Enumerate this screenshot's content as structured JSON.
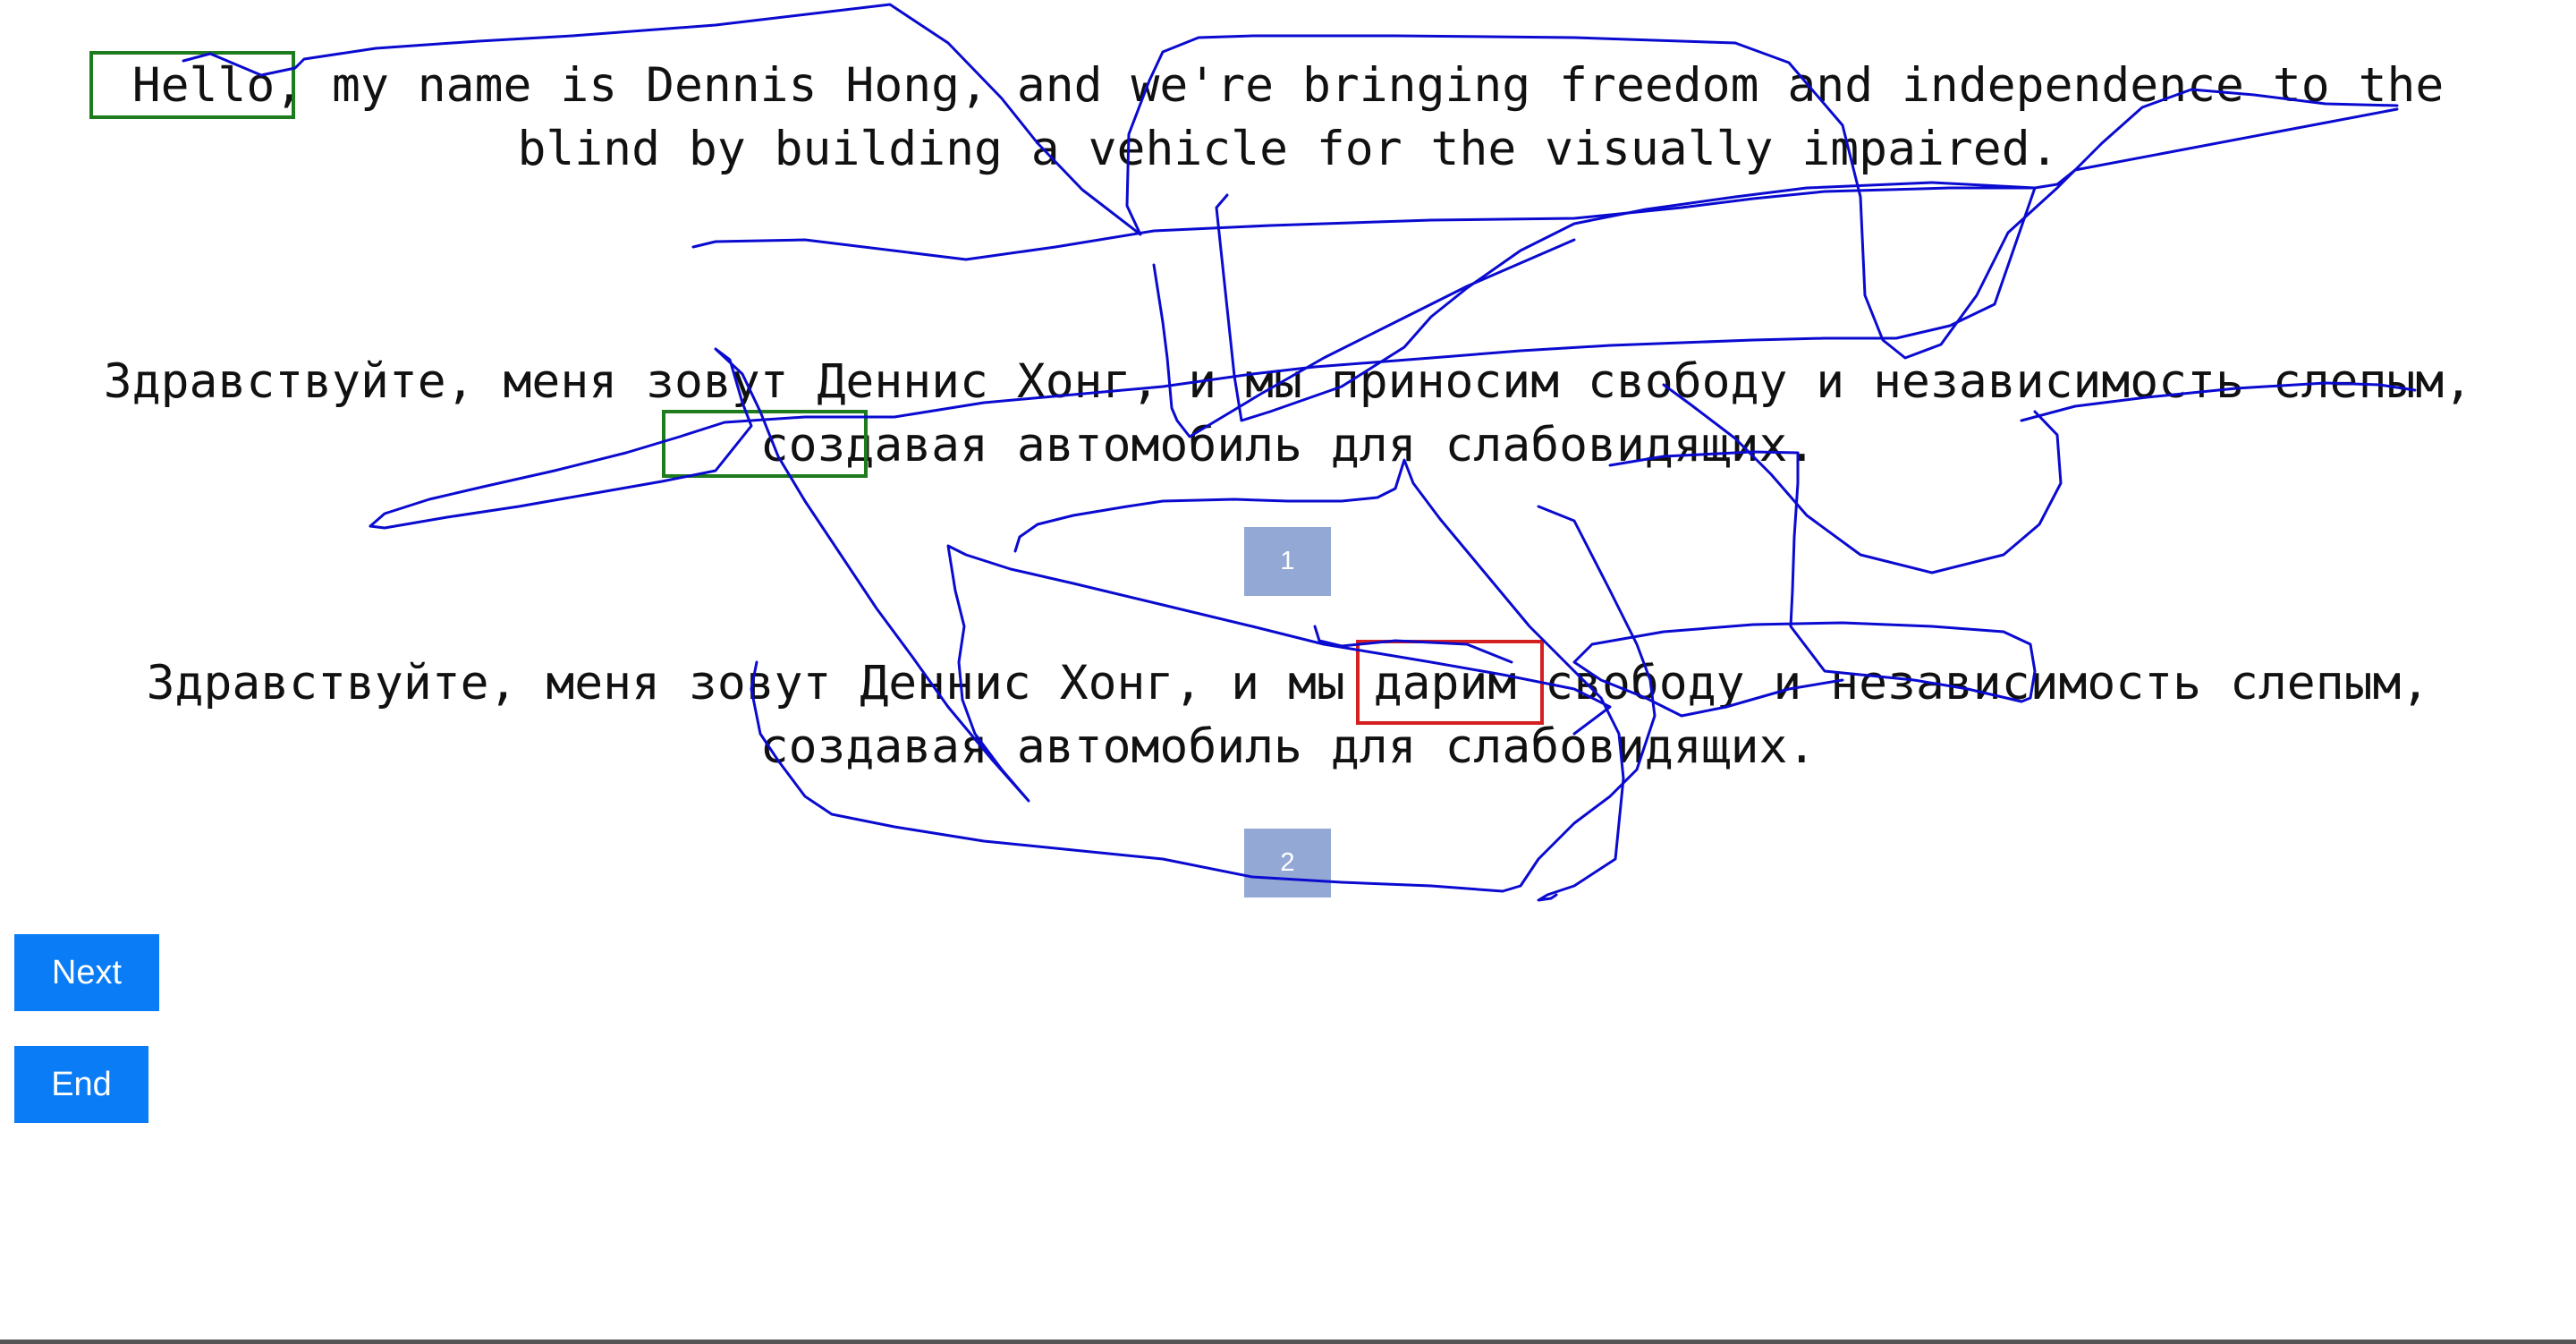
{
  "source": {
    "lines": [
      "Hello, my name is Dennis Hong, and we're bringing freedom and independence to the",
      "blind by building a vehicle for the visually impaired."
    ]
  },
  "reference": {
    "lines": [
      "Здравствуйте, меня зовут Деннис Хонг, и мы приносим свободу и независимость слепым,",
      "создавая автомобиль для слабовидящих."
    ],
    "badge": "1"
  },
  "hypothesis": {
    "lines": [
      "Здравствуйте, меня зовут Деннис Хонг, и мы дарим свободу и независимость слепым,",
      "создавая автомобиль для слабовидящих."
    ],
    "badge": "2"
  },
  "buttons": {
    "next": "Next",
    "end": "End"
  },
  "highlights": {
    "match_color": "#1e7b1e",
    "mismatch_color": "#d42020"
  },
  "stroke_color": "#0a0ad0"
}
